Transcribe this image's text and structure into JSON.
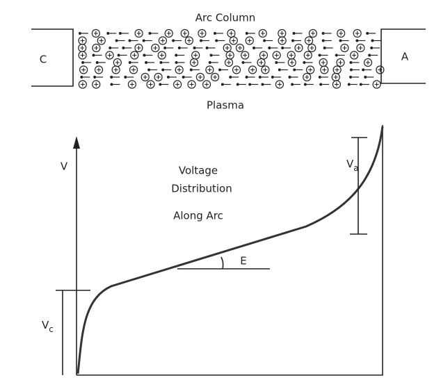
{
  "title": "Arc Column",
  "cathode": "C",
  "anode": "A",
  "caption": "Plasma",
  "axis_label": "V",
  "curve_label": {
    "line1": "Voltage",
    "line2": "Distribution",
    "line3": "Along Arc"
  },
  "slope_label": "E",
  "anode_drop": {
    "main": "V",
    "sub": "a"
  },
  "cathode_drop": {
    "main": "V",
    "sub": "c"
  }
}
